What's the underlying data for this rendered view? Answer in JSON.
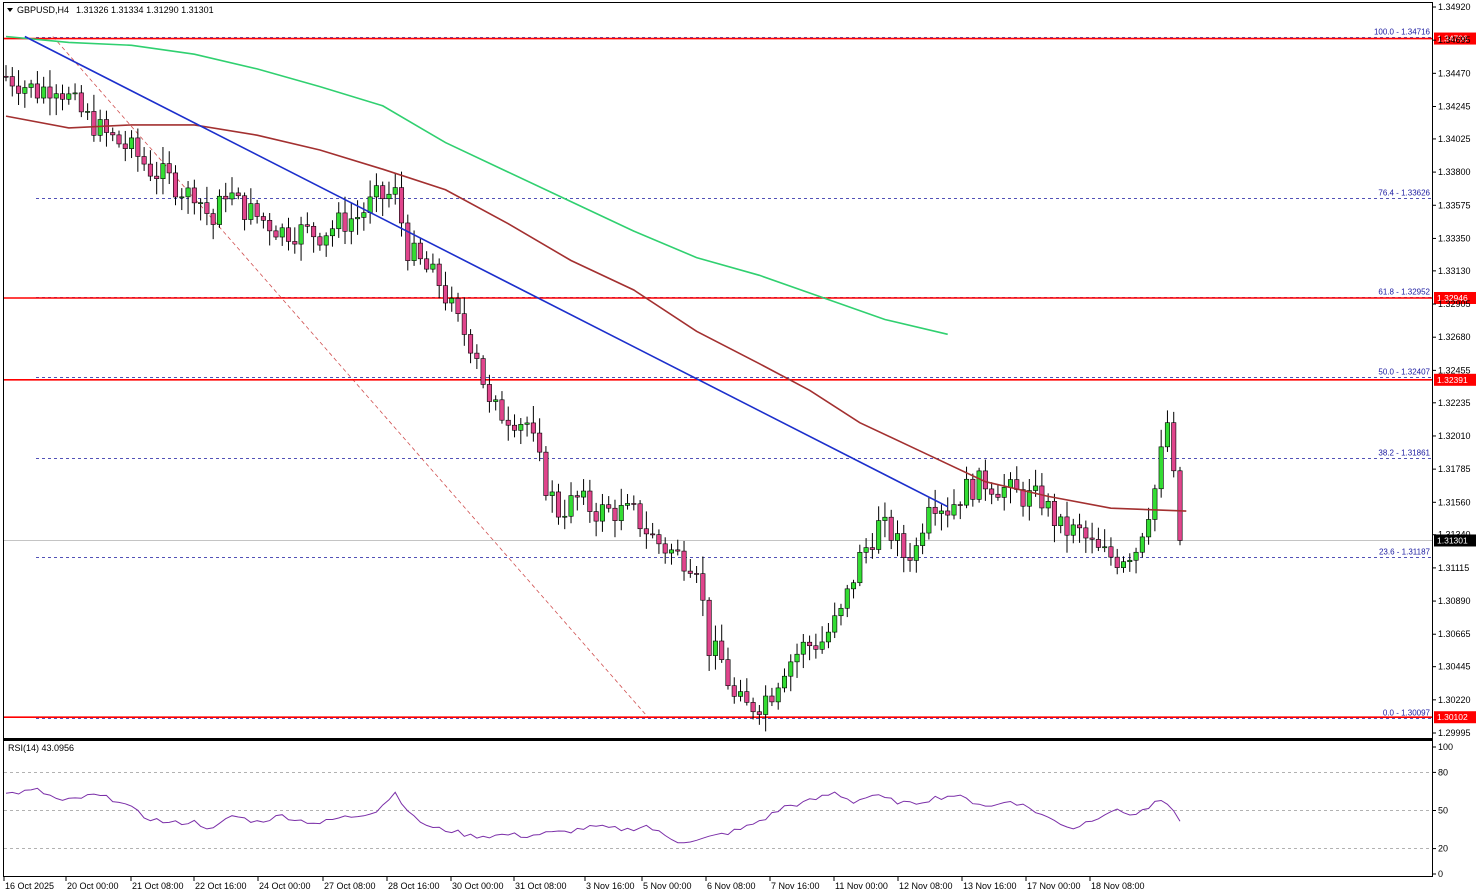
{
  "header": {
    "symbol": "GBPUSD,H4",
    "ohlc": "1.31326 1.31334 1.31290 1.31301"
  },
  "rsi_header": "RSI(14) 43.0956",
  "colors": {
    "bull": "#33dd33",
    "bear": "#e0458c",
    "ma_short": "#a33030",
    "ma_long": "#30d070",
    "trend": "#1c2fcc",
    "level": "#ff0000",
    "fib": "#1a1aa0",
    "rsi": "#7b2fa8"
  },
  "chart_data": [
    {
      "type": "candlestick",
      "title": "",
      "ylim": [
        1.2996,
        1.3494
      ],
      "y_ticks": [
        "1.34920",
        "1.34695",
        "1.34470",
        "1.34245",
        "1.34025",
        "1.33800",
        "1.33575",
        "1.33350",
        "1.33130",
        "1.32905",
        "1.32680",
        "1.32455",
        "1.32235",
        "1.32010",
        "1.31785",
        "1.31560",
        "1.31340",
        "1.31115",
        "1.30890",
        "1.30665",
        "1.30445",
        "1.30220",
        "1.29995"
      ],
      "x_ticks": [
        "16 Oct 2025",
        "20 Oct 00:00",
        "21 Oct 08:00",
        "22 Oct 16:00",
        "24 Oct 00:00",
        "27 Oct 08:00",
        "28 Oct 16:00",
        "30 Oct 00:00",
        "31 Oct 08:00",
        "3 Nov 16:00",
        "5 Nov 00:00",
        "6 Nov 08:00",
        "7 Nov 16:00",
        "11 Nov 00:00",
        "12 Nov 08:00",
        "13 Nov 16:00",
        "17 Nov 00:00",
        "18 Nov 08:00"
      ],
      "candle_count": 188,
      "price_path": [
        [
          0,
          1.3445
        ],
        [
          5,
          1.3435
        ],
        [
          8,
          1.344
        ],
        [
          12,
          1.342
        ],
        [
          16,
          1.3405
        ],
        [
          20,
          1.3395
        ],
        [
          23,
          1.3382
        ],
        [
          26,
          1.3375
        ],
        [
          29,
          1.3365
        ],
        [
          30,
          1.3368
        ],
        [
          33,
          1.3345
        ],
        [
          35,
          1.3368
        ],
        [
          37,
          1.3358
        ],
        [
          40,
          1.335
        ],
        [
          44,
          1.334
        ],
        [
          47,
          1.334
        ],
        [
          50,
          1.3338
        ],
        [
          53,
          1.3345
        ],
        [
          56,
          1.335
        ],
        [
          59,
          1.3362
        ],
        [
          62,
          1.3365
        ],
        [
          64,
          1.3328
        ],
        [
          66,
          1.3318
        ],
        [
          69,
          1.3305
        ],
        [
          72,
          1.3278
        ],
        [
          75,
          1.3258
        ],
        [
          77,
          1.322
        ],
        [
          80,
          1.3215
        ],
        [
          83,
          1.321
        ],
        [
          86,
          1.3168
        ],
        [
          88,
          1.315
        ],
        [
          91,
          1.3158
        ],
        [
          94,
          1.315
        ],
        [
          97,
          1.315
        ],
        [
          100,
          1.3148
        ],
        [
          103,
          1.3132
        ],
        [
          105,
          1.3125
        ],
        [
          107,
          1.312
        ],
        [
          110,
          1.3115
        ],
        [
          112,
          1.3058
        ],
        [
          114,
          1.3048
        ],
        [
          116,
          1.3022
        ],
        [
          118,
          1.3017
        ],
        [
          120,
          1.302
        ],
        [
          122,
          1.3028
        ],
        [
          124,
          1.3045
        ],
        [
          127,
          1.3058
        ],
        [
          130,
          1.3062
        ],
        [
          133,
          1.308
        ],
        [
          136,
          1.3118
        ],
        [
          139,
          1.314
        ],
        [
          141,
          1.3135
        ],
        [
          143,
          1.312
        ],
        [
          145,
          1.3125
        ],
        [
          147,
          1.316
        ],
        [
          150,
          1.3152
        ],
        [
          153,
          1.3165
        ],
        [
          156,
          1.317
        ],
        [
          159,
          1.3165
        ],
        [
          162,
          1.316
        ],
        [
          165,
          1.3158
        ],
        [
          168,
          1.3138
        ],
        [
          171,
          1.3135
        ],
        [
          174,
          1.3122
        ],
        [
          177,
          1.3118
        ],
        [
          180,
          1.3125
        ],
        [
          183,
          1.3165
        ],
        [
          185,
          1.321
        ],
        [
          187,
          1.313
        ]
      ],
      "moving_averages": [
        {
          "color_key": "ma_short",
          "points": [
            [
              0,
              1.3418
            ],
            [
              10,
              1.341
            ],
            [
              20,
              1.3412
            ],
            [
              30,
              1.3412
            ],
            [
              40,
              1.3405
            ],
            [
              50,
              1.3395
            ],
            [
              60,
              1.3382
            ],
            [
              70,
              1.3368
            ],
            [
              80,
              1.3345
            ],
            [
              90,
              1.332
            ],
            [
              100,
              1.33
            ],
            [
              110,
              1.3272
            ],
            [
              120,
              1.325
            ],
            [
              128,
              1.3232
            ],
            [
              136,
              1.321
            ],
            [
              146,
              1.319
            ],
            [
              156,
              1.317
            ],
            [
              166,
              1.316
            ],
            [
              176,
              1.3152
            ],
            [
              188,
              1.315
            ]
          ]
        },
        {
          "color_key": "ma_long",
          "points": [
            [
              0,
              1.3472
            ],
            [
              10,
              1.3468
            ],
            [
              20,
              1.3466
            ],
            [
              30,
              1.346
            ],
            [
              40,
              1.345
            ],
            [
              50,
              1.3438
            ],
            [
              60,
              1.3425
            ],
            [
              70,
              1.34
            ],
            [
              80,
              1.338
            ],
            [
              90,
              1.336
            ],
            [
              100,
              1.334
            ],
            [
              110,
              1.3322
            ],
            [
              120,
              1.331
            ],
            [
              130,
              1.3295
            ],
            [
              140,
              1.328
            ],
            [
              150,
              1.327
            ]
          ]
        }
      ],
      "trend_lines": [
        {
          "color_key": "trend",
          "from": [
            3,
            1.3472
          ],
          "to": [
            150,
            1.3153
          ]
        }
      ],
      "fib_diagonal": {
        "from": [
          3,
          1.3472
        ],
        "to": [
          80,
          1.301
        ]
      },
      "horizontal_levels": [
        {
          "price": 1.34706,
          "label": "1.34706"
        },
        {
          "price": 1.32946,
          "label": "1.32946"
        },
        {
          "price": 1.32391,
          "label": "1.32391"
        },
        {
          "price": 1.30102,
          "label": "1.30102"
        }
      ],
      "fib_levels": [
        {
          "price": 1.34716,
          "label": "100.0 - 1.34716"
        },
        {
          "price": 1.33626,
          "label": "76.4 - 1.33626"
        },
        {
          "price": 1.32952,
          "label": "61.8 - 1.32952"
        },
        {
          "price": 1.32407,
          "label": "50.0 - 1.32407"
        },
        {
          "price": 1.31861,
          "label": "38.2 - 1.31861"
        },
        {
          "price": 1.31187,
          "label": "23.6 - 1.31187"
        },
        {
          "price": 1.30097,
          "label": "0.0 - 1.30097"
        }
      ],
      "current_price": {
        "price": 1.31301,
        "label": "1.31301"
      }
    },
    {
      "type": "line",
      "title": "RSI(14) 43.0956",
      "ylim": [
        0,
        100
      ],
      "y_ticks": [
        "100",
        "80",
        "50",
        "20",
        "0"
      ],
      "levels": [
        80,
        50,
        20
      ],
      "path": [
        [
          0,
          63
        ],
        [
          5,
          66
        ],
        [
          9,
          57
        ],
        [
          14,
          62
        ],
        [
          18,
          58
        ],
        [
          22,
          45
        ],
        [
          26,
          40
        ],
        [
          30,
          41
        ],
        [
          33,
          35
        ],
        [
          36,
          46
        ],
        [
          40,
          41
        ],
        [
          44,
          46
        ],
        [
          47,
          42
        ],
        [
          50,
          40
        ],
        [
          53,
          44
        ],
        [
          56,
          46
        ],
        [
          59,
          50
        ],
        [
          62,
          64
        ],
        [
          65,
          44
        ],
        [
          68,
          36
        ],
        [
          71,
          34
        ],
        [
          74,
          30
        ],
        [
          77,
          30
        ],
        [
          80,
          31
        ],
        [
          83,
          30
        ],
        [
          86,
          32
        ],
        [
          89,
          33
        ],
        [
          92,
          36
        ],
        [
          94,
          37
        ],
        [
          96,
          36
        ],
        [
          99,
          35
        ],
        [
          102,
          38
        ],
        [
          105,
          30
        ],
        [
          107,
          26
        ],
        [
          110,
          26
        ],
        [
          113,
          30
        ],
        [
          117,
          35
        ],
        [
          121,
          44
        ],
        [
          124,
          53
        ],
        [
          127,
          56
        ],
        [
          129,
          59
        ],
        [
          132,
          64
        ],
        [
          135,
          57
        ],
        [
          138,
          62
        ],
        [
          141,
          58
        ],
        [
          144,
          55
        ],
        [
          148,
          60
        ],
        [
          151,
          62
        ],
        [
          154,
          57
        ],
        [
          157,
          53
        ],
        [
          160,
          58
        ],
        [
          163,
          52
        ],
        [
          166,
          44
        ],
        [
          170,
          36
        ],
        [
          173,
          43
        ],
        [
          176,
          50
        ],
        [
          180,
          47
        ],
        [
          184,
          58
        ],
        [
          187,
          43
        ]
      ]
    }
  ]
}
